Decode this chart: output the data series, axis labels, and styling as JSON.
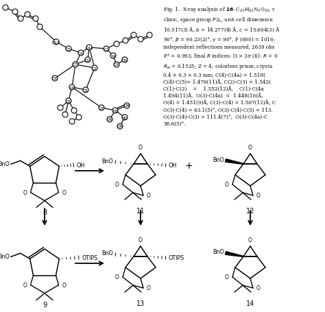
{
  "bg_color": "#ffffff",
  "caption_lines": [
    "Fig. 1.  X-ray analysis of ±16±: C₂₃H₂₂N₂O₁₀, r",
    "clinic, space group P2₁, unit cell dimension",
    "10.517(3) Å, b = 14.277(4) Å, c = 15.604(3) Å",
    "90°, β = 90.23(2)°, γ = 90°, F (000) = 1016;",
    "independent reflections measured, 2639 obs",
    "F² = 0.993, final R indices: [I > 2σ (I)]: R = 0",
    "Rᵤ = 0.1525; Z = 4; colorless prism; crysta",
    "0.4 × 0.3 × 0.3 mm; C(4)-C(4a) = 1.518(",
    "C(4)-C(5)= 1.476(11)Å, C(2)-C(3) = 1.542(",
    "C(1)-C(2)    =    1.552(12)Å,    C(1)-C(4a",
    "1.494(11)Å,  O(3)-C(4a)  =  1.448(10)Å,",
    "O(4) = 1.451(9)Å, C(3)-C(4) = 1.507(12)Å; C",
    "O(3)-C(4) = 63.1(5)°, O(3)-C(4)-C(5) = 113.",
    "O(3)-C(4)-C(3) = 111.4(7)°,  O(3)-C(4a)-C",
    "58.6(5)°."
  ]
}
